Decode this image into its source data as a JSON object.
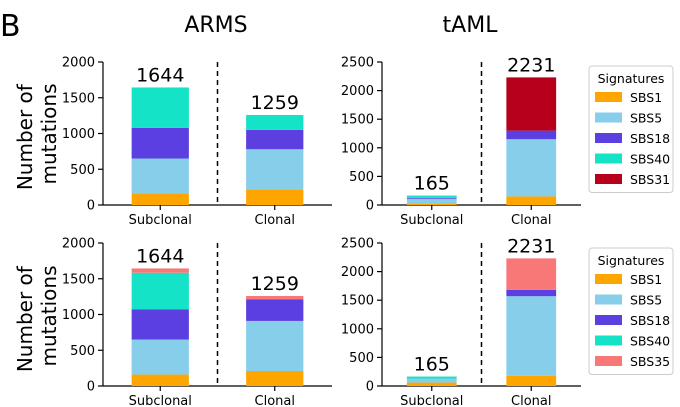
{
  "panel_label": "B",
  "column_titles": [
    "ARMS",
    "tAML"
  ],
  "ylabel_lines": [
    "Number of",
    "mutations"
  ],
  "colors": {
    "SBS1": "#ffa500",
    "SBS5": "#87ceeb",
    "SBS18": "#5b3fe0",
    "SBS40": "#15e3c8",
    "SBS31": "#b7001b",
    "SBS35": "#f87878"
  },
  "legends": [
    {
      "title": "Signatures",
      "entries": [
        "SBS1",
        "SBS5",
        "SBS18",
        "SBS40",
        "SBS31"
      ]
    },
    {
      "title": "Signatures",
      "entries": [
        "SBS1",
        "SBS5",
        "SBS18",
        "SBS40",
        "SBS35"
      ]
    }
  ],
  "chart_data": [
    {
      "type": "bar",
      "stacked": true,
      "title": "ARMS",
      "ylabel": "Number of mutations",
      "categories": [
        "Subclonal",
        "Clonal"
      ],
      "ylim": [
        0,
        2000
      ],
      "yticks": [
        0,
        500,
        1000,
        1500,
        2000
      ],
      "totals": [
        1644,
        1259
      ],
      "series": [
        {
          "name": "SBS1",
          "values": [
            160,
            220
          ]
        },
        {
          "name": "SBS5",
          "values": [
            490,
            560
          ]
        },
        {
          "name": "SBS18",
          "values": [
            430,
            270
          ]
        },
        {
          "name": "SBS40",
          "values": [
            564,
            209
          ]
        }
      ]
    },
    {
      "type": "bar",
      "stacked": true,
      "title": "tAML",
      "categories": [
        "Subclonal",
        "Clonal"
      ],
      "ylim": [
        0,
        2500
      ],
      "yticks": [
        0,
        500,
        1000,
        1500,
        2000,
        2500
      ],
      "totals": [
        165,
        2231
      ],
      "series": [
        {
          "name": "SBS1",
          "values": [
            30,
            150
          ]
        },
        {
          "name": "SBS5",
          "values": [
            80,
            1000
          ]
        },
        {
          "name": "SBS18",
          "values": [
            15,
            150
          ]
        },
        {
          "name": "SBS40",
          "values": [
            40,
            0
          ]
        },
        {
          "name": "SBS31",
          "values": [
            0,
            931
          ]
        }
      ]
    },
    {
      "type": "bar",
      "stacked": true,
      "ylabel": "Number of mutations",
      "categories": [
        "Subclonal",
        "Clonal"
      ],
      "ylim": [
        0,
        2000
      ],
      "yticks": [
        0,
        500,
        1000,
        1500,
        2000
      ],
      "totals": [
        1644,
        1259
      ],
      "series": [
        {
          "name": "SBS1",
          "values": [
            160,
            210
          ]
        },
        {
          "name": "SBS5",
          "values": [
            490,
            700
          ]
        },
        {
          "name": "SBS18",
          "values": [
            420,
            300
          ]
        },
        {
          "name": "SBS40",
          "values": [
            514,
            0
          ]
        },
        {
          "name": "SBS35",
          "values": [
            60,
            49
          ]
        }
      ]
    },
    {
      "type": "bar",
      "stacked": true,
      "categories": [
        "Subclonal",
        "Clonal"
      ],
      "ylim": [
        0,
        2500
      ],
      "yticks": [
        0,
        500,
        1000,
        1500,
        2000,
        2500
      ],
      "totals": [
        165,
        2231
      ],
      "series": [
        {
          "name": "SBS1",
          "values": [
            60,
            180
          ]
        },
        {
          "name": "SBS5",
          "values": [
            70,
            1390
          ]
        },
        {
          "name": "SBS18",
          "values": [
            0,
            110
          ]
        },
        {
          "name": "SBS40",
          "values": [
            35,
            0
          ]
        },
        {
          "name": "SBS35",
          "values": [
            0,
            551
          ]
        }
      ]
    }
  ]
}
